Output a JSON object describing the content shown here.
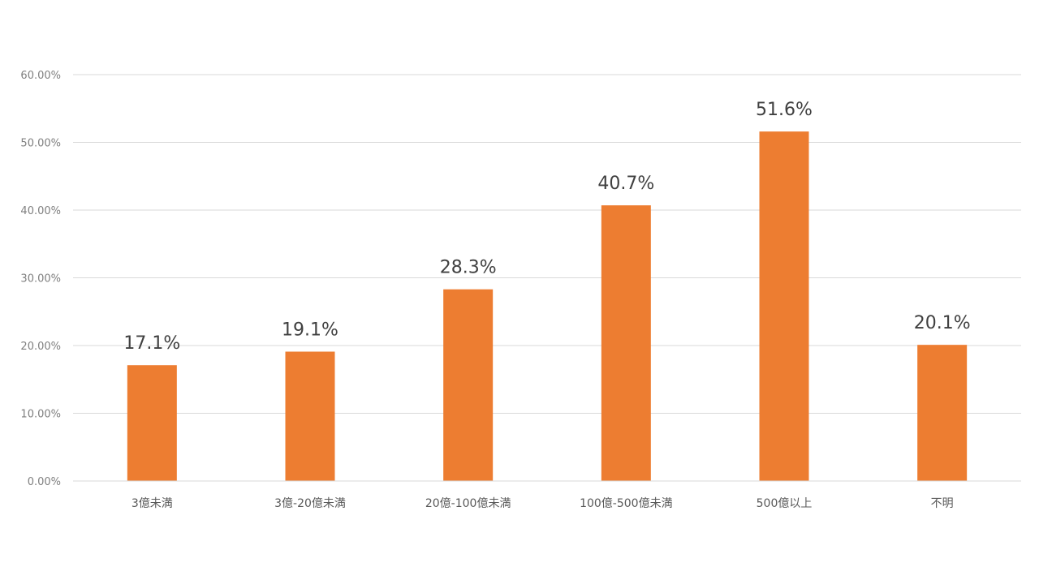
{
  "chart_data": {
    "type": "bar",
    "title": "",
    "xlabel": "",
    "ylabel": "",
    "categories": [
      "3億未満",
      "3億-20億未満",
      "20億-100億未満",
      "100億-500億未満",
      "500億以上",
      "不明"
    ],
    "values": [
      17.1,
      19.1,
      28.3,
      40.7,
      51.6,
      20.1
    ],
    "data_labels": [
      "17.1%",
      "19.1%",
      "28.3%",
      "40.7%",
      "51.6%",
      "20.1%"
    ],
    "ylim": [
      0,
      60
    ],
    "y_ticks": [
      "0.00%",
      "10.00%",
      "20.00%",
      "30.00%",
      "40.00%",
      "50.00%",
      "60.00%"
    ],
    "grid": true,
    "legend": "none",
    "bar_color": "#ED7D31",
    "grid_color": "#D9D9D9"
  }
}
